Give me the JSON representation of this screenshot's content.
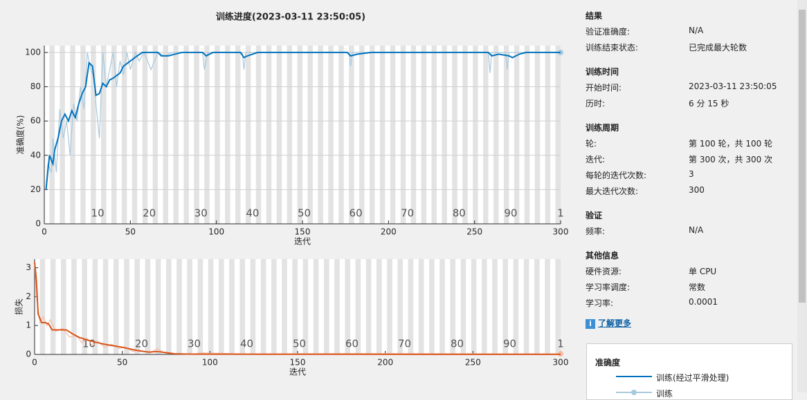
{
  "title": "训练进度(2023-03-11 23:50:05)",
  "chart_data": [
    {
      "type": "line",
      "ylabel": "准确度(%)",
      "xlabel": "迭代",
      "xlim": [
        0,
        300
      ],
      "xticks": [
        0,
        50,
        100,
        150,
        200,
        250,
        300
      ],
      "ylim": [
        0,
        104
      ],
      "yticks": [
        0,
        20,
        40,
        60,
        80,
        100
      ],
      "grid": true,
      "epoch_labels": {
        "x": [
          31,
          61,
          91,
          121,
          151,
          181,
          211,
          241,
          271,
          300
        ],
        "labels": [
          "10",
          "20",
          "30",
          "40",
          "50",
          "60",
          "70",
          "80",
          "90",
          "1"
        ]
      },
      "series": [
        {
          "name": "训练",
          "color": "#a9c9dd",
          "x": [
            1,
            2,
            4,
            5,
            7,
            9,
            11,
            13,
            15,
            17,
            19,
            21,
            23,
            25,
            27,
            29,
            30,
            32,
            34,
            36,
            38,
            40,
            42,
            44,
            46,
            48,
            50,
            53,
            55,
            58,
            62,
            66,
            70,
            74,
            80,
            92,
            93,
            95,
            115,
            116,
            117,
            177,
            178,
            179,
            258,
            259,
            260,
            268,
            269,
            270,
            274,
            300
          ],
          "values": [
            20,
            35,
            30,
            50,
            30,
            67,
            50,
            60,
            40,
            70,
            60,
            80,
            67,
            100,
            90,
            85,
            70,
            50,
            100,
            80,
            90,
            100,
            80,
            95,
            87,
            100,
            90,
            100,
            95,
            100,
            90,
            100,
            98,
            100,
            100,
            100,
            90,
            100,
            100,
            90,
            100,
            100,
            92,
            100,
            100,
            88,
            100,
            100,
            90,
            100,
            100,
            100
          ]
        },
        {
          "name": "训练(经过平滑处理)",
          "color": "#0072bd",
          "x": [
            1,
            3,
            5,
            6,
            8,
            10,
            12,
            14,
            16,
            18,
            20,
            22,
            24,
            26,
            28,
            30,
            32,
            34,
            36,
            38,
            40,
            44,
            46,
            50,
            54,
            57,
            66,
            68,
            72,
            80,
            92,
            94,
            98,
            114,
            116,
            118,
            124,
            176,
            178,
            182,
            190,
            258,
            260,
            264,
            270,
            272,
            276,
            280,
            300
          ],
          "values": [
            20,
            40,
            35,
            43,
            50,
            60,
            64,
            60,
            66,
            62,
            70,
            76,
            80,
            94,
            92,
            75,
            76,
            82,
            80,
            84,
            85,
            88,
            92,
            95,
            98,
            100,
            100,
            98,
            98,
            100,
            100,
            98,
            100,
            100,
            97,
            98,
            100,
            100,
            98,
            99,
            100,
            100,
            98,
            99,
            98,
            97,
            99,
            100,
            100
          ]
        }
      ]
    },
    {
      "type": "line",
      "ylabel": "损失",
      "xlabel": "迭代",
      "xlim": [
        0,
        300
      ],
      "xticks": [
        0,
        50,
        100,
        150,
        200,
        250,
        300
      ],
      "ylim": [
        0,
        3.3
      ],
      "yticks": [
        0,
        1,
        2,
        3
      ],
      "grid": false,
      "epoch_labels": {
        "x": [
          31,
          61,
          91,
          121,
          151,
          181,
          211,
          241,
          271,
          300
        ],
        "labels": [
          "10",
          "20",
          "30",
          "40",
          "50",
          "60",
          "70",
          "80",
          "90",
          "1"
        ]
      },
      "series": [
        {
          "name": "训练",
          "color": "#f3bca5",
          "x": [
            0,
            1,
            2,
            3,
            5,
            7,
            9,
            12,
            16,
            20,
            24,
            27,
            30,
            33,
            36,
            40,
            44,
            48,
            52,
            56,
            60,
            66,
            70,
            74,
            78,
            90,
            95,
            120,
            180,
            300
          ],
          "values": [
            3.2,
            2.0,
            1.6,
            1.1,
            1.3,
            1.0,
            1.2,
            0.8,
            0.9,
            0.6,
            0.65,
            0.4,
            0.55,
            0.3,
            0.45,
            0.25,
            0.35,
            0.2,
            0.25,
            0.1,
            0.15,
            0.05,
            0.2,
            0.05,
            0.02,
            0.01,
            0.05,
            0.02,
            0.03,
            0.02
          ]
        },
        {
          "name": "训练(经过平滑处理)",
          "color": "#d95319",
          "x": [
            0,
            1,
            2,
            4,
            6,
            8,
            10,
            15,
            18,
            22,
            25,
            30,
            35,
            40,
            45,
            50,
            55,
            60,
            65,
            70,
            75,
            80,
            90,
            100,
            150,
            300
          ],
          "values": [
            3.2,
            2.6,
            1.4,
            1.1,
            1.1,
            1.05,
            0.85,
            0.85,
            0.85,
            0.7,
            0.6,
            0.5,
            0.42,
            0.35,
            0.3,
            0.25,
            0.18,
            0.12,
            0.08,
            0.1,
            0.06,
            0.02,
            0.01,
            0.01,
            0.005,
            0.003
          ]
        }
      ]
    }
  ],
  "panel": {
    "sections": [
      {
        "heading": "结果",
        "rows": [
          [
            "验证准确度:",
            "N/A"
          ],
          [
            "训练结束状态:",
            "已完成最大轮数"
          ]
        ]
      },
      {
        "heading": "训练时间",
        "rows": [
          [
            "开始时间:",
            "2023-03-11 23:50:05"
          ],
          [
            "历时:",
            "6 分 15 秒"
          ]
        ]
      },
      {
        "heading": "训练周期",
        "rows": [
          [
            "轮:",
            "第 100 轮，共 100 轮"
          ],
          [
            "迭代:",
            "第 300 次，共 300 次"
          ],
          [
            "每轮的迭代次数:",
            "3"
          ],
          [
            "最大迭代次数:",
            "300"
          ]
        ]
      },
      {
        "heading": "验证",
        "rows": [
          [
            "频率:",
            "N/A"
          ]
        ]
      },
      {
        "heading": "其他信息",
        "rows": [
          [
            "硬件资源:",
            "单 CPU"
          ],
          [
            "学习率调度:",
            "常数"
          ],
          [
            "学习率:",
            "0.0001"
          ]
        ]
      }
    ],
    "link": "了解更多",
    "legend_title": "准确度"
  }
}
